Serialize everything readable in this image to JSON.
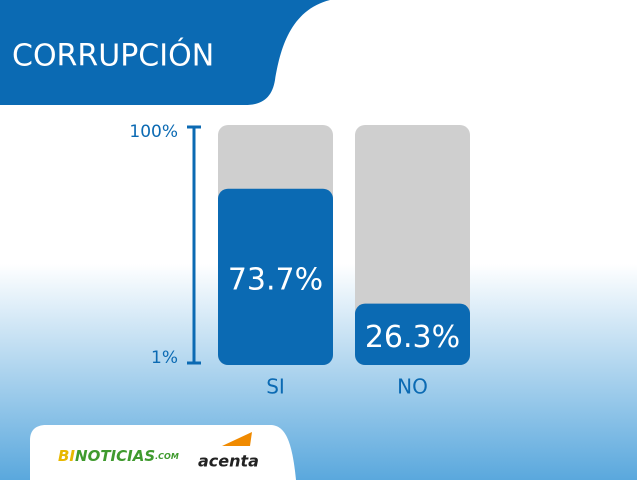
{
  "chart_data": {
    "type": "bar",
    "title": "CORRUPCIÓN",
    "categories": [
      "SI",
      "NO"
    ],
    "values": [
      73.7,
      26.3
    ],
    "value_labels": [
      "73.7%",
      "26.3%"
    ],
    "color": "#0b6ab3",
    "ylim": [
      1,
      100
    ],
    "yticks": [
      {
        "value": 100,
        "label": "100%"
      },
      {
        "value": 1,
        "label": "1%"
      }
    ]
  },
  "footer": {
    "brand_1": [
      "BI",
      "NOTICIAS",
      ".COM"
    ],
    "brand_2": "acenta"
  }
}
